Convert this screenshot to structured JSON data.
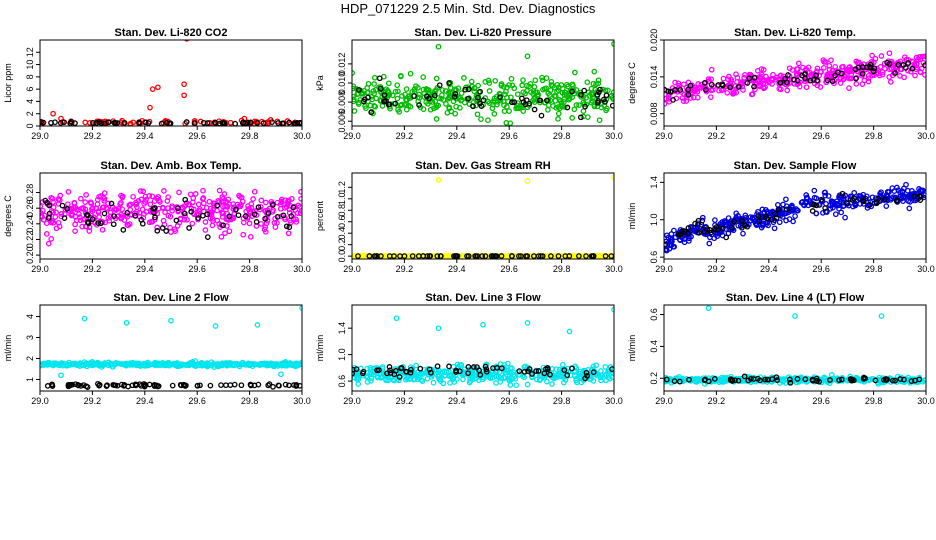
{
  "title": "HDP_071229  2.5 Min. Std. Dev. Diagnostics",
  "chart_data": [
    {
      "type": "scatter",
      "title": "Stan. Dev. Li-820 CO2",
      "ylabel": "Licor ppm",
      "xlim": [
        29.0,
        30.0
      ],
      "ylim": [
        0,
        14
      ],
      "xticks": [
        29.0,
        29.2,
        29.4,
        29.6,
        29.8,
        30.0
      ],
      "xtick_labels": [
        "29.0",
        "29.2",
        "29.4",
        "29.6",
        "29.8",
        "30.0"
      ],
      "yticks": [
        0,
        2,
        4,
        6,
        8,
        10,
        12
      ],
      "ytick_labels": [
        "0",
        "2",
        "4",
        "6",
        "8",
        "10",
        "12"
      ],
      "series": [
        {
          "name": "Li-820 CO2",
          "color": "#ff0000",
          "base": 0.6,
          "spread": 0.3,
          "n": 70,
          "outliers": [
            [
              29.05,
              2.0
            ],
            [
              29.08,
              1.2
            ],
            [
              29.42,
              3.0
            ],
            [
              29.43,
              6.0
            ],
            [
              29.45,
              6.3
            ],
            [
              29.55,
              6.8
            ],
            [
              29.55,
              5.0
            ],
            [
              29.56,
              14.2
            ],
            [
              29.78,
              1.2
            ],
            [
              29.88,
              1.0
            ]
          ]
        },
        {
          "name": "reference",
          "color": "#000000",
          "base": 0.5,
          "spread": 0.15,
          "n": 60,
          "outliers": []
        }
      ]
    },
    {
      "type": "scatter",
      "title": "Stan. Dev. Li-820 Pressure",
      "ylabel": "kPa",
      "xlim": [
        29.0,
        30.0
      ],
      "ylim": [
        0.0055,
        0.0145
      ],
      "xticks": [
        29.0,
        29.2,
        29.4,
        29.6,
        29.8,
        30.0
      ],
      "xtick_labels": [
        "29.0",
        "29.2",
        "29.4",
        "29.6",
        "29.8",
        "30.0"
      ],
      "yticks": [
        0.006,
        0.008,
        0.01,
        0.012
      ],
      "ytick_labels": [
        "0.006",
        "0.008",
        "0.010",
        "0.012"
      ],
      "series": [
        {
          "name": "Li-820 Pressure",
          "color": "#00bb00",
          "base": 0.0085,
          "spread": 0.0017,
          "n": 400,
          "outliers": [
            [
              29.33,
              0.0138
            ],
            [
              30.0,
              0.0141
            ],
            [
              29.67,
              0.0128
            ]
          ]
        },
        {
          "name": "reference",
          "color": "#000000",
          "base": 0.0083,
          "spread": 0.0013,
          "n": 60,
          "outliers": []
        }
      ]
    },
    {
      "type": "scatter",
      "title": "Stan. Dev. Li-820 Temp.",
      "ylabel": "degrees C",
      "xlim": [
        29.0,
        30.0
      ],
      "ylim": [
        0.006,
        0.02
      ],
      "xticks": [
        29.0,
        29.2,
        29.4,
        29.6,
        29.8,
        30.0
      ],
      "xtick_labels": [
        "29.0",
        "29.2",
        "29.4",
        "29.6",
        "29.8",
        "30.0"
      ],
      "yticks": [
        0.008,
        0.014,
        0.02
      ],
      "ytick_labels": [
        "0.008",
        "0.014",
        "0.020"
      ],
      "series": [
        {
          "name": "Li-820 Temp",
          "color": "#ff00ff",
          "base_start": 0.0113,
          "base_end": 0.0163,
          "spread": 0.0017,
          "n": 400,
          "outliers": []
        },
        {
          "name": "reference",
          "color": "#000000",
          "base_start": 0.0113,
          "base_end": 0.0158,
          "spread": 0.0012,
          "n": 60,
          "outliers": []
        }
      ]
    },
    {
      "type": "scatter",
      "title": "Stan. Dev. Amb. Box Temp.",
      "ylabel": "degrees C",
      "xlim": [
        29.0,
        30.0
      ],
      "ylim": [
        0.195,
        0.305
      ],
      "xticks": [
        29.0,
        29.2,
        29.4,
        29.6,
        29.8,
        30.0
      ],
      "xtick_labels": [
        "29.0",
        "29.2",
        "29.4",
        "29.6",
        "29.8",
        "30.0"
      ],
      "yticks": [
        0.2,
        0.22,
        0.24,
        0.26,
        0.28
      ],
      "ytick_labels": [
        "0.20",
        "0.22",
        "0.24",
        "0.26",
        "0.28"
      ],
      "series": [
        {
          "name": "Amb. Box Temp",
          "color": "#ff00ff",
          "base": 0.255,
          "spread": 0.022,
          "n": 400,
          "outliers": []
        },
        {
          "name": "reference",
          "color": "#000000",
          "base": 0.252,
          "spread": 0.018,
          "n": 60,
          "outliers": []
        }
      ]
    },
    {
      "type": "scatter",
      "title": "Stan. Dev. Gas Stream RH",
      "ylabel": "percent",
      "xlim": [
        29.0,
        30.0
      ],
      "ylim": [
        -0.05,
        1.45
      ],
      "xticks": [
        29.0,
        29.2,
        29.4,
        29.6,
        29.8,
        30.0
      ],
      "xtick_labels": [
        "29.0",
        "29.2",
        "29.4",
        "29.6",
        "29.8",
        "30.0"
      ],
      "yticks": [
        0.0,
        0.2,
        0.4,
        0.6,
        0.8,
        1.0,
        1.2
      ],
      "ytick_labels": [
        "0.0",
        "0.2",
        "0.4",
        "0.6",
        "0.8",
        "1.0",
        "1.2"
      ],
      "series": [
        {
          "name": "Gas Stream RH",
          "color": "#ffff00",
          "base": 0.0,
          "spread": 0.003,
          "n": 400,
          "outliers": [
            [
              29.33,
              1.33
            ],
            [
              29.67,
              1.31
            ],
            [
              30.0,
              1.37
            ]
          ]
        },
        {
          "name": "reference",
          "color": "#000000",
          "base": 0.0,
          "spread": 0.002,
          "n": 60,
          "outliers": []
        }
      ]
    },
    {
      "type": "scatter",
      "title": "Stan. Dev. Sample Flow",
      "ylabel": "ml/min",
      "xlim": [
        29.0,
        30.0
      ],
      "ylim": [
        0.58,
        1.5
      ],
      "xticks": [
        29.0,
        29.2,
        29.4,
        29.6,
        29.8,
        30.0
      ],
      "xtick_labels": [
        "29.0",
        "29.2",
        "29.4",
        "29.6",
        "29.8",
        "30.0"
      ],
      "yticks": [
        0.6,
        1.0,
        1.4
      ],
      "ytick_labels": [
        "0.6",
        "1.0",
        "1.4"
      ],
      "series": [
        {
          "name": "Sample Flow",
          "color": "#0000dd",
          "curve": "flow",
          "spread": 0.09,
          "n": 400,
          "outliers": []
        },
        {
          "name": "reference",
          "color": "#000000",
          "curve": "flow",
          "spread": 0.06,
          "n": 60,
          "outliers": []
        }
      ]
    },
    {
      "type": "scatter",
      "title": "Stan. Dev. Line 2 Flow",
      "ylabel": "ml/min",
      "xlim": [
        29.0,
        30.0
      ],
      "ylim": [
        0.45,
        4.55
      ],
      "xticks": [
        29.0,
        29.2,
        29.4,
        29.6,
        29.8,
        30.0
      ],
      "xtick_labels": [
        "29.0",
        "29.2",
        "29.4",
        "29.6",
        "29.8",
        "30.0"
      ],
      "yticks": [
        1,
        2,
        3,
        4
      ],
      "ytick_labels": [
        "1",
        "2",
        "3",
        "4"
      ],
      "series": [
        {
          "name": "Line 2 Flow",
          "color": "#00e5ee",
          "base": 1.72,
          "spread": 0.08,
          "n": 400,
          "outliers": [
            [
              29.17,
              3.9
            ],
            [
              29.33,
              3.7
            ],
            [
              29.5,
              3.8
            ],
            [
              29.67,
              3.55
            ],
            [
              29.83,
              3.6
            ],
            [
              30.0,
              4.4
            ],
            [
              29.08,
              1.2
            ],
            [
              29.92,
              1.25
            ]
          ]
        },
        {
          "name": "reference",
          "color": "#000000",
          "base": 0.72,
          "spread": 0.06,
          "n": 80,
          "outliers": []
        }
      ]
    },
    {
      "type": "scatter",
      "title": "Stan. Dev. Line 3 Flow",
      "ylabel": "ml/min",
      "xlim": [
        29.0,
        30.0
      ],
      "ylim": [
        0.45,
        1.75
      ],
      "xticks": [
        29.0,
        29.2,
        29.4,
        29.6,
        29.8,
        30.0
      ],
      "xtick_labels": [
        "29.0",
        "29.2",
        "29.4",
        "29.6",
        "29.8",
        "30.0"
      ],
      "yticks": [
        0.6,
        1.0,
        1.4
      ],
      "ytick_labels": [
        "0.6",
        "1.0",
        "1.4"
      ],
      "series": [
        {
          "name": "Line 3 Flow",
          "color": "#00e5ee",
          "base": 0.7,
          "spread": 0.12,
          "n": 400,
          "outliers": [
            [
              29.17,
              1.55
            ],
            [
              29.33,
              1.4
            ],
            [
              29.5,
              1.45
            ],
            [
              29.67,
              1.48
            ],
            [
              29.83,
              1.35
            ],
            [
              30.0,
              1.68
            ]
          ]
        },
        {
          "name": "reference",
          "color": "#000000",
          "base": 0.76,
          "spread": 0.07,
          "n": 60,
          "outliers": []
        }
      ]
    },
    {
      "type": "scatter",
      "title": "Stan. Dev. Line 4 (LT) Flow",
      "ylabel": "ml/min",
      "xlim": [
        29.0,
        30.0
      ],
      "ylim": [
        0.12,
        0.66
      ],
      "xticks": [
        29.0,
        29.2,
        29.4,
        29.6,
        29.8,
        30.0
      ],
      "xtick_labels": [
        "29.0",
        "29.2",
        "29.4",
        "29.6",
        "29.8",
        "30.0"
      ],
      "yticks": [
        0.2,
        0.4,
        0.6
      ],
      "ytick_labels": [
        "0.2",
        "0.4",
        "0.6"
      ],
      "series": [
        {
          "name": "Line 4 (LT) Flow",
          "color": "#00e5ee",
          "base": 0.19,
          "spread": 0.015,
          "n": 400,
          "outliers": [
            [
              29.17,
              0.64
            ],
            [
              29.5,
              0.59
            ],
            [
              29.83,
              0.59
            ]
          ]
        },
        {
          "name": "reference",
          "color": "#000000",
          "base": 0.19,
          "spread": 0.012,
          "n": 60,
          "outliers": []
        }
      ]
    }
  ]
}
